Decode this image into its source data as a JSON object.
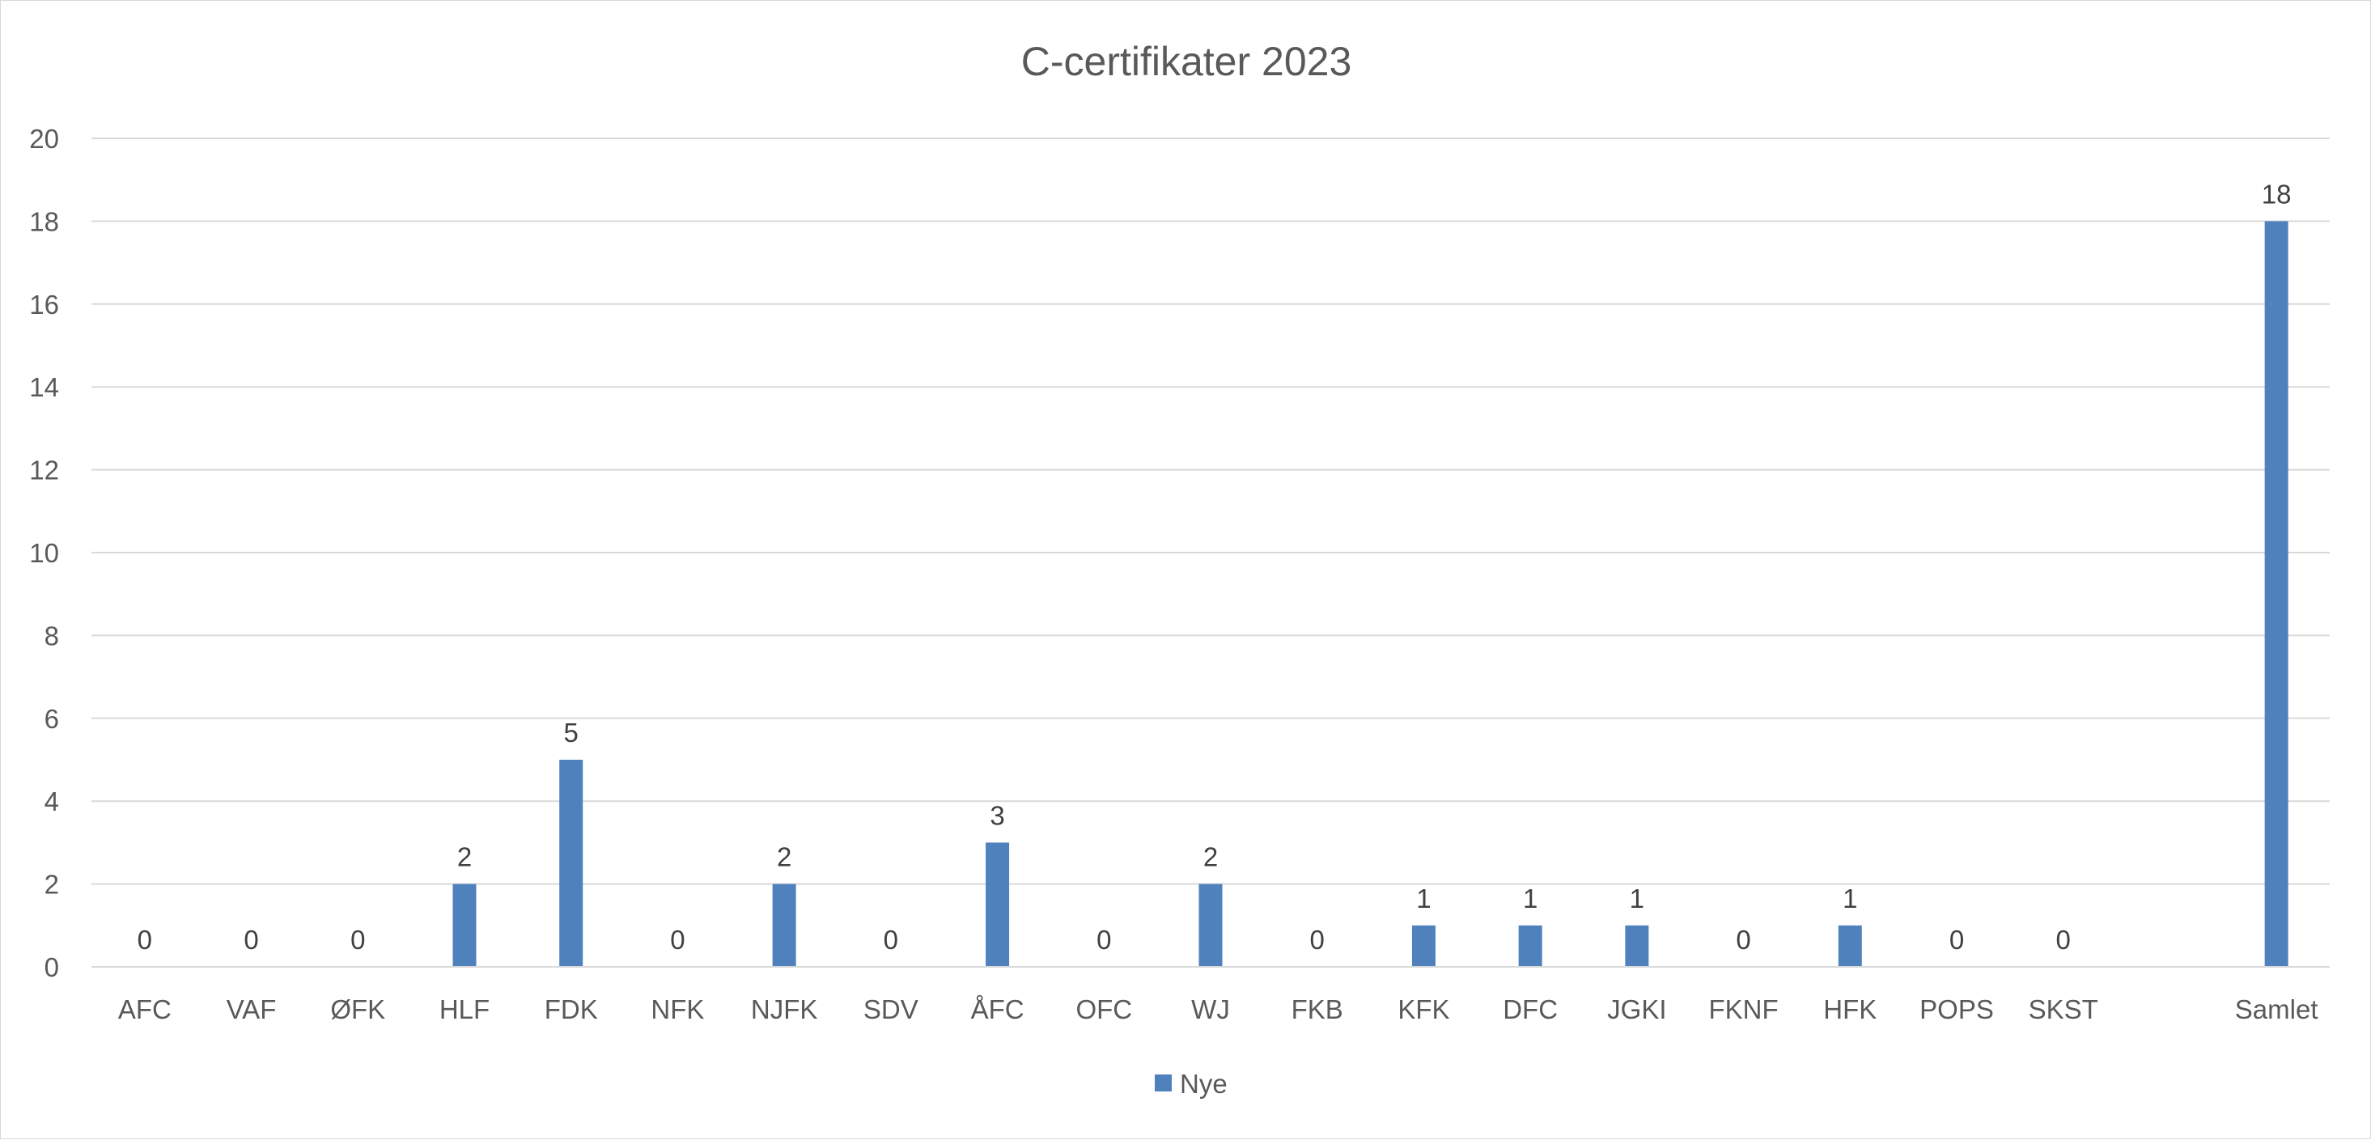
{
  "chart_data": {
    "type": "bar",
    "title": "C-certifikater 2023",
    "categories": [
      "AFC",
      "VAF",
      "ØFK",
      "HLF",
      "FDK",
      "NFK",
      "NJFK",
      "SDV",
      "ÅFC",
      "OFC",
      "WJ",
      "FKB",
      "KFK",
      "DFC",
      "JGKI",
      "FKNF",
      "HFK",
      "POPS",
      "SKST",
      "",
      "Samlet"
    ],
    "series": [
      {
        "name": "Nye",
        "color": "#4f81bd",
        "values": [
          0,
          0,
          0,
          2,
          5,
          0,
          2,
          0,
          3,
          0,
          2,
          0,
          1,
          1,
          1,
          0,
          1,
          0,
          0,
          null,
          18
        ]
      }
    ],
    "ylim": [
      0,
      20
    ],
    "yticks": [
      0,
      2,
      4,
      6,
      8,
      10,
      12,
      14,
      16,
      18,
      20
    ],
    "grid": true,
    "legend_position": "bottom",
    "xlabel": "",
    "ylabel": ""
  }
}
